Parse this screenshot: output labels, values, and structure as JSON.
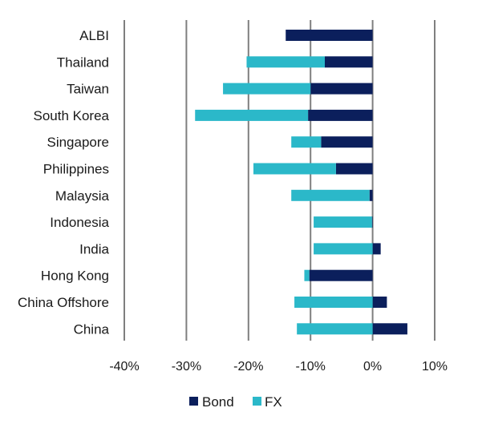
{
  "chart_data": {
    "type": "bar",
    "orientation": "horizontal",
    "stacked": true,
    "categories": [
      "ALBI",
      "Thailand",
      "Taiwan",
      "South Korea",
      "Singapore",
      "Philippines",
      "Malaysia",
      "Indonesia",
      "India",
      "Hong Kong",
      "China Offshore",
      "China"
    ],
    "series": [
      {
        "name": "Bond",
        "color": "#0b1f5c",
        "values": [
          -14,
          -7.7,
          -10,
          -10.4,
          -8.3,
          -5.9,
          -0.5,
          -0.1,
          1.3,
          -10.2,
          2.3,
          5.6
        ]
      },
      {
        "name": "FX",
        "color": "#2bb8c9",
        "values": [
          0,
          -12.6,
          -14.1,
          -18.2,
          -4.8,
          -13.3,
          -12.6,
          -9.4,
          -9.5,
          -0.8,
          -12.6,
          -12.2
        ]
      }
    ],
    "xlim": [
      -40,
      10
    ],
    "xticks": [
      "-40%",
      "-30%",
      "-20%",
      "-10%",
      "0%",
      "10%"
    ],
    "xtick_values": [
      -40,
      -30,
      -20,
      -10,
      0,
      10
    ],
    "grid": "vertical",
    "legend": "bottom"
  }
}
